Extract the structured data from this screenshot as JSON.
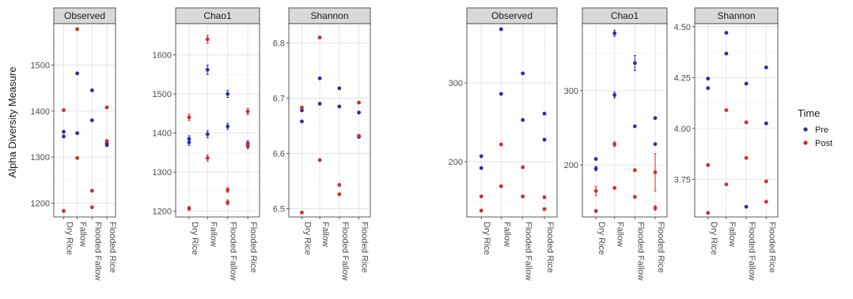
{
  "ylabel": "Alpha Diversity Measure",
  "legend": {
    "title": "Time",
    "entries": [
      {
        "name": "Pre",
        "color": "#2b2bb5"
      },
      {
        "name": "Post",
        "color": "#d42a2a"
      }
    ]
  },
  "chart_data": [
    {
      "type": "scatter",
      "facet": "Observed",
      "categories": [
        "Dry Rice",
        "Fallow",
        "Flooded Fallow",
        "Flooded Rice"
      ],
      "ylim": [
        1170,
        1590
      ],
      "yticks": [
        1200,
        1300,
        1400,
        1500
      ],
      "series": [
        {
          "name": "Pre",
          "points": [
            [
              0,
              1355,
              0
            ],
            [
              0,
              1345,
              0
            ],
            [
              1,
              1482,
              0
            ],
            [
              1,
              1352,
              0
            ],
            [
              2,
              1445,
              0
            ],
            [
              2,
              1380,
              0
            ],
            [
              3,
              1330,
              0
            ],
            [
              3,
              1326,
              0
            ]
          ]
        },
        {
          "name": "Post",
          "points": [
            [
              0,
              1402,
              0
            ],
            [
              0,
              1183,
              0
            ],
            [
              1,
              1578,
              0
            ],
            [
              1,
              1298,
              0
            ],
            [
              2,
              1227,
              0
            ],
            [
              2,
              1191,
              0
            ],
            [
              3,
              1408,
              0
            ],
            [
              3,
              1335,
              0
            ]
          ]
        }
      ]
    },
    {
      "type": "scatter",
      "facet": "Chao1",
      "categories": [
        "Dry Rice",
        "Fallow",
        "Flooded Fallow",
        "Flooded Rice"
      ],
      "ylim": [
        1185,
        1680
      ],
      "yticks": [
        1200,
        1300,
        1400,
        1500,
        1600
      ],
      "series": [
        {
          "name": "Pre",
          "points": [
            [
              0,
              1385,
              8
            ],
            [
              0,
              1376,
              8
            ],
            [
              1,
              1562,
              12
            ],
            [
              1,
              1397,
              9
            ],
            [
              2,
              1500,
              9
            ],
            [
              2,
              1417,
              8
            ],
            [
              3,
              1373,
              7
            ],
            [
              3,
              1367,
              7
            ]
          ]
        },
        {
          "name": "Post",
          "points": [
            [
              0,
              1440,
              8
            ],
            [
              0,
              1207,
              5
            ],
            [
              1,
              1640,
              10
            ],
            [
              1,
              1336,
              8
            ],
            [
              2,
              1254,
              6
            ],
            [
              2,
              1222,
              6
            ],
            [
              3,
              1455,
              8
            ],
            [
              3,
              1370,
              7
            ]
          ]
        }
      ]
    },
    {
      "type": "scatter",
      "facet": "Shannon",
      "categories": [
        "Dry Rice",
        "Fallow",
        "Flooded Fallow",
        "Flooded Rice"
      ],
      "ylim": [
        6.485,
        6.835
      ],
      "yticks": [
        6.5,
        6.6,
        6.7,
        6.8
      ],
      "series": [
        {
          "name": "Pre",
          "points": [
            [
              0,
              6.678,
              0
            ],
            [
              0,
              6.658,
              0
            ],
            [
              1,
              6.736,
              0
            ],
            [
              1,
              6.69,
              0
            ],
            [
              2,
              6.718,
              0
            ],
            [
              2,
              6.685,
              0
            ],
            [
              3,
              6.674,
              0
            ],
            [
              3,
              6.63,
              0
            ]
          ]
        },
        {
          "name": "Post",
          "points": [
            [
              0,
              6.683,
              0
            ],
            [
              0,
              6.493,
              0
            ],
            [
              1,
              6.81,
              0
            ],
            [
              1,
              6.588,
              0
            ],
            [
              2,
              6.543,
              0
            ],
            [
              2,
              6.526,
              0
            ],
            [
              3,
              6.692,
              0
            ],
            [
              3,
              6.632,
              0
            ]
          ]
        }
      ]
    },
    {
      "type": "scatter",
      "facet": "Observed",
      "categories": [
        "Dry Rice",
        "Fallow",
        "Flooded Fallow",
        "Flooded Rice"
      ],
      "ylim": [
        130,
        375
      ],
      "yticks": [
        200,
        300
      ],
      "series": [
        {
          "name": "Pre",
          "points": [
            [
              0,
              207,
              0
            ],
            [
              0,
              192,
              0
            ],
            [
              1,
              368,
              0
            ],
            [
              1,
              286,
              0
            ],
            [
              2,
              312,
              0
            ],
            [
              2,
              253,
              0
            ],
            [
              3,
              261,
              0
            ],
            [
              3,
              228,
              0
            ]
          ]
        },
        {
          "name": "Post",
          "points": [
            [
              0,
              156,
              0
            ],
            [
              0,
              138,
              0
            ],
            [
              1,
              222,
              0
            ],
            [
              1,
              169,
              0
            ],
            [
              2,
              193,
              0
            ],
            [
              2,
              156,
              0
            ],
            [
              3,
              155,
              0
            ],
            [
              3,
              140,
              0
            ]
          ]
        }
      ]
    },
    {
      "type": "scatter",
      "facet": "Chao1",
      "categories": [
        "Dry Rice",
        "Fallow",
        "Flooded Fallow",
        "Flooded Rice"
      ],
      "ylim": [
        130,
        390
      ],
      "yticks": [
        200,
        300
      ],
      "series": [
        {
          "name": "Pre",
          "points": [
            [
              0,
              208,
              0
            ],
            [
              0,
              195,
              3
            ],
            [
              1,
              377,
              4
            ],
            [
              1,
              294,
              4
            ],
            [
              2,
              337,
              10
            ],
            [
              2,
              252,
              0
            ],
            [
              3,
              263,
              0
            ],
            [
              3,
              228,
              0
            ]
          ]
        },
        {
          "name": "Post",
          "points": [
            [
              0,
              165,
              6
            ],
            [
              0,
              138,
              0
            ],
            [
              1,
              228,
              3
            ],
            [
              1,
              169,
              0
            ],
            [
              2,
              193,
              0
            ],
            [
              2,
              157,
              0
            ],
            [
              3,
              190,
              25
            ],
            [
              3,
              142,
              3
            ]
          ]
        }
      ]
    },
    {
      "type": "scatter",
      "facet": "Shannon",
      "categories": [
        "Dry Rice",
        "Fallow",
        "Flooded Fallow",
        "Flooded Rice"
      ],
      "ylim": [
        3.565,
        4.515
      ],
      "yticks": [
        3.75,
        4.0,
        4.25,
        4.5
      ],
      "series": [
        {
          "name": "Pre",
          "points": [
            [
              0,
              4.245,
              0
            ],
            [
              0,
              4.198,
              0
            ],
            [
              1,
              4.47,
              0
            ],
            [
              1,
              4.368,
              0
            ],
            [
              2,
              4.22,
              0
            ],
            [
              2,
              3.615,
              0
            ],
            [
              3,
              4.3,
              0
            ],
            [
              3,
              4.025,
              0
            ]
          ]
        },
        {
          "name": "Post",
          "points": [
            [
              0,
              3.82,
              0
            ],
            [
              0,
              3.585,
              0
            ],
            [
              1,
              4.09,
              0
            ],
            [
              1,
              3.725,
              0
            ],
            [
              2,
              4.03,
              0
            ],
            [
              2,
              3.855,
              0
            ],
            [
              3,
              3.74,
              0
            ],
            [
              3,
              3.64,
              0
            ]
          ]
        }
      ]
    }
  ]
}
